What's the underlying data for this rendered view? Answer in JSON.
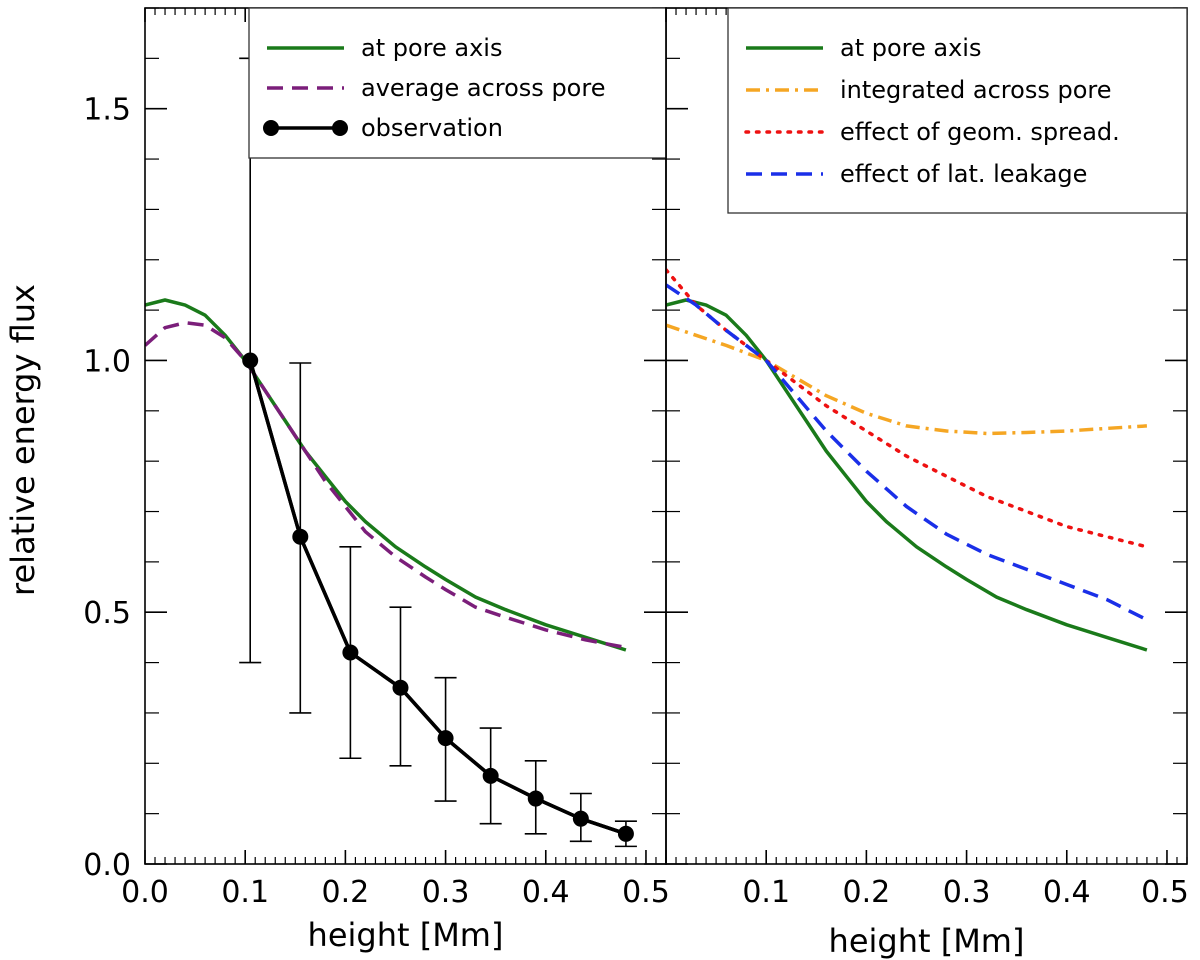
{
  "chart_data": [
    {
      "type": "line",
      "panel": "left",
      "xlabel": "height [Mm]",
      "ylabel": "relative energy flux",
      "xlim": [
        0.0,
        0.52
      ],
      "ylim": [
        0.0,
        1.7
      ],
      "xticks": [
        0.0,
        0.1,
        0.2,
        0.3,
        0.4,
        0.5
      ],
      "xtick_labels": [
        "0.0",
        "0.1",
        "0.2",
        "0.3",
        "0.4",
        "0.5"
      ],
      "yticks": [
        0.0,
        0.5,
        1.0,
        1.5
      ],
      "ytick_labels": [
        "0.0",
        "0.5",
        "1.0",
        "1.5"
      ],
      "legend_position": "top-right",
      "series": [
        {
          "name": "at pore axis",
          "style": "solid",
          "color": "#1a7a1a",
          "x": [
            0.0,
            0.02,
            0.04,
            0.06,
            0.08,
            0.1,
            0.12,
            0.14,
            0.16,
            0.18,
            0.2,
            0.22,
            0.25,
            0.28,
            0.3,
            0.33,
            0.36,
            0.4,
            0.44,
            0.48
          ],
          "y": [
            1.11,
            1.12,
            1.11,
            1.09,
            1.05,
            1.0,
            0.94,
            0.88,
            0.82,
            0.77,
            0.72,
            0.68,
            0.63,
            0.59,
            0.565,
            0.53,
            0.505,
            0.475,
            0.45,
            0.425
          ]
        },
        {
          "name": "average across pore",
          "style": "dashed",
          "color": "#7b1e7a",
          "x": [
            0.0,
            0.02,
            0.04,
            0.06,
            0.08,
            0.1,
            0.12,
            0.14,
            0.16,
            0.18,
            0.2,
            0.22,
            0.25,
            0.28,
            0.3,
            0.33,
            0.36,
            0.4,
            0.44,
            0.48
          ],
          "y": [
            1.03,
            1.065,
            1.075,
            1.07,
            1.045,
            1.0,
            0.94,
            0.88,
            0.82,
            0.76,
            0.71,
            0.66,
            0.61,
            0.57,
            0.545,
            0.51,
            0.49,
            0.465,
            0.445,
            0.43
          ]
        },
        {
          "name": "observation",
          "style": "solid-markers",
          "color": "#000000",
          "x": [
            0.105,
            0.155,
            0.205,
            0.255,
            0.3,
            0.345,
            0.39,
            0.435,
            0.48
          ],
          "y": [
            1.0,
            0.65,
            0.42,
            0.35,
            0.25,
            0.175,
            0.13,
            0.09,
            0.06
          ],
          "err_low": [
            0.4,
            0.3,
            0.21,
            0.195,
            0.125,
            0.08,
            0.06,
            0.045,
            0.035
          ],
          "err_high": [
            1.6,
            0.995,
            0.63,
            0.51,
            0.37,
            0.27,
            0.205,
            0.14,
            0.085
          ]
        }
      ]
    },
    {
      "type": "line",
      "panel": "right",
      "xlabel": "height [Mm]",
      "ylabel": "",
      "xlim": [
        0.0,
        0.52
      ],
      "ylim": [
        0.0,
        1.7
      ],
      "xticks": [
        0.1,
        0.2,
        0.3,
        0.4,
        0.5
      ],
      "xtick_labels": [
        "0.1",
        "0.2",
        "0.3",
        "0.4",
        "0.5"
      ],
      "legend_position": "top-right",
      "series": [
        {
          "name": "at pore axis",
          "style": "solid",
          "color": "#1a7a1a",
          "x": [
            0.0,
            0.02,
            0.04,
            0.06,
            0.08,
            0.1,
            0.12,
            0.14,
            0.16,
            0.18,
            0.2,
            0.22,
            0.25,
            0.28,
            0.3,
            0.33,
            0.36,
            0.4,
            0.44,
            0.48
          ],
          "y": [
            1.11,
            1.12,
            1.11,
            1.09,
            1.05,
            1.0,
            0.94,
            0.88,
            0.82,
            0.77,
            0.72,
            0.68,
            0.63,
            0.59,
            0.565,
            0.53,
            0.505,
            0.475,
            0.45,
            0.425
          ]
        },
        {
          "name": "integrated across pore",
          "style": "dashdot",
          "color": "#f5a623",
          "x": [
            0.0,
            0.03,
            0.06,
            0.1,
            0.13,
            0.16,
            0.2,
            0.24,
            0.28,
            0.32,
            0.36,
            0.4,
            0.44,
            0.48
          ],
          "y": [
            1.07,
            1.05,
            1.03,
            1.0,
            0.965,
            0.93,
            0.895,
            0.87,
            0.86,
            0.855,
            0.857,
            0.86,
            0.865,
            0.87
          ]
        },
        {
          "name": "effect of geom. spread.",
          "style": "dotted",
          "color": "#ee1111",
          "x": [
            0.0,
            0.03,
            0.06,
            0.1,
            0.13,
            0.16,
            0.2,
            0.24,
            0.28,
            0.32,
            0.36,
            0.4,
            0.44,
            0.48
          ],
          "y": [
            1.18,
            1.11,
            1.06,
            1.0,
            0.955,
            0.91,
            0.86,
            0.81,
            0.77,
            0.73,
            0.7,
            0.67,
            0.65,
            0.63
          ]
        },
        {
          "name": "effect of lat. leakage",
          "style": "dashed",
          "color": "#1a2fe8",
          "x": [
            0.0,
            0.03,
            0.06,
            0.1,
            0.13,
            0.16,
            0.2,
            0.24,
            0.28,
            0.32,
            0.36,
            0.4,
            0.44,
            0.48
          ],
          "y": [
            1.15,
            1.11,
            1.06,
            1.0,
            0.93,
            0.86,
            0.78,
            0.71,
            0.655,
            0.615,
            0.585,
            0.555,
            0.525,
            0.485
          ]
        }
      ]
    }
  ]
}
